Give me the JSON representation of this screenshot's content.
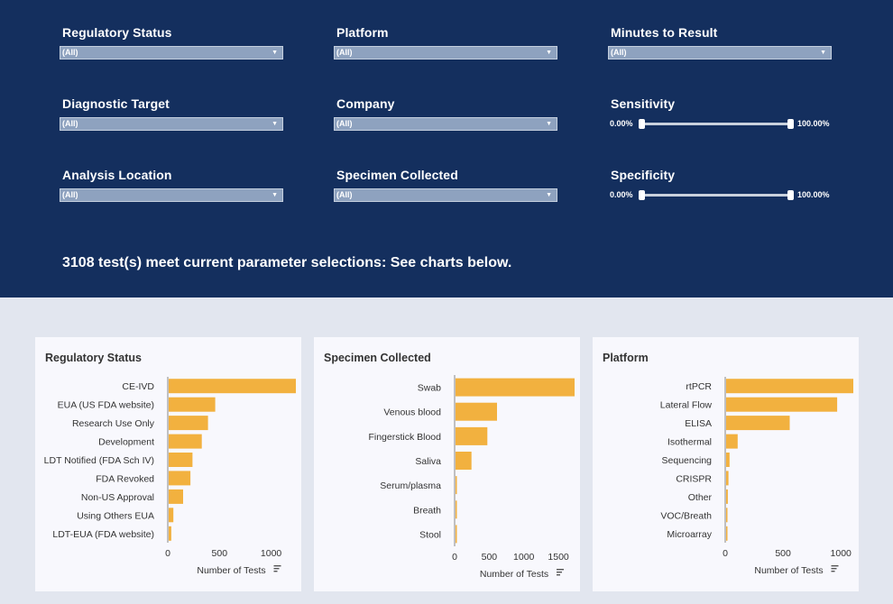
{
  "filters": {
    "regulatory_status": {
      "label": "Regulatory Status",
      "value": "(All)"
    },
    "platform": {
      "label": "Platform",
      "value": "(All)"
    },
    "minutes_to_result": {
      "label": "Minutes to Result",
      "value": "(All)"
    },
    "diagnostic_target": {
      "label": "Diagnostic Target",
      "value": "(All)"
    },
    "company": {
      "label": "Company",
      "value": "(All)"
    },
    "sensitivity": {
      "label": "Sensitivity",
      "min": "0.00%",
      "max": "100.00%"
    },
    "analysis_location": {
      "label": "Analysis Location",
      "value": "(All)"
    },
    "specimen_collected": {
      "label": "Specimen Collected",
      "value": "(All)"
    },
    "specificity": {
      "label": "Specificity",
      "min": "0.00%",
      "max": "100.00%"
    }
  },
  "summary": "3108 test(s) meet current parameter selections: See charts below.",
  "colors": {
    "header_bg": "#142f5e",
    "bar": "#f2b13f",
    "page_bg": "#e2e6ef"
  },
  "chart_data": [
    {
      "type": "bar",
      "orientation": "horizontal",
      "title": "Regulatory Status",
      "categories": [
        "CE-IVD",
        "EUA (US FDA website)",
        "Research Use Only",
        "Development",
        "LDT Notified (FDA Sch IV)",
        "FDA Revoked",
        "Non-US Approval",
        "Using Others EUA",
        "LDT-EUA (FDA website)"
      ],
      "values": [
        1230,
        450,
        380,
        320,
        230,
        210,
        140,
        45,
        25
      ],
      "xlabel": "Number of Tests",
      "xticks": [
        "0",
        "500",
        "1000"
      ],
      "xlim": [
        0,
        1230
      ]
    },
    {
      "type": "bar",
      "orientation": "horizontal",
      "title": "Specimen Collected",
      "categories": [
        "Swab",
        "Venous blood",
        "Fingerstick Blood",
        "Saliva",
        "Serum/plasma",
        "Breath",
        "Stool"
      ],
      "values": [
        1720,
        600,
        460,
        230,
        10,
        5,
        5
      ],
      "xlabel": "Number of Tests",
      "xticks": [
        "0",
        "500",
        "1000",
        "1500"
      ],
      "xlim": [
        0,
        1720
      ]
    },
    {
      "type": "bar",
      "orientation": "horizontal",
      "title": "Platform",
      "categories": [
        "rtPCR",
        "Lateral Flow",
        "ELISA",
        "Isothermal",
        "Sequencing",
        "CRISPR",
        "Other",
        "VOC/Breath",
        "Microarray"
      ],
      "values": [
        1100,
        960,
        550,
        100,
        30,
        20,
        15,
        10,
        5
      ],
      "xlabel": "Number of Tests",
      "xticks": [
        "0",
        "500",
        "1000"
      ],
      "xlim": [
        0,
        1100
      ]
    }
  ]
}
